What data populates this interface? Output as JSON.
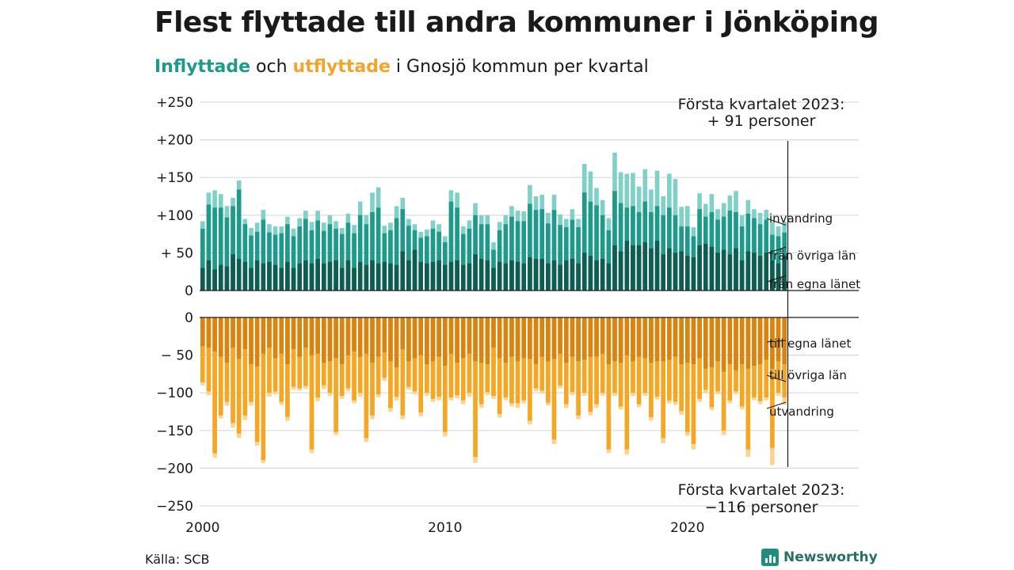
{
  "header": {
    "title": "Flest flyttade till andra kommuner i Jönköping",
    "subtitle_in": "Inflyttade",
    "subtitle_mid1": " och ",
    "subtitle_out": "utflyttade",
    "subtitle_rest": " i Gnosjö kommun per kvartal"
  },
  "footer": {
    "source": "Källa: SCB",
    "brand": "Newsworthy"
  },
  "colors": {
    "in_egna": "#0f5c52",
    "in_ovriga": "#1d9a8a",
    "in_invandring": "#7fd1c7",
    "out_egna": "#d98410",
    "out_ovriga": "#f5a623",
    "out_utvandring": "#fbd490",
    "grid": "#d9d9d9",
    "axis": "#1a1a1a"
  },
  "chart_data": {
    "type": "bar",
    "stacked": true,
    "x_start": "2000 Q1",
    "frequency": "quarterly",
    "ylim": [
      -250,
      250
    ],
    "y_ticks": [
      -250,
      -200,
      -150,
      -100,
      -50,
      0,
      50,
      100,
      150,
      200,
      250
    ],
    "y_tick_labels": [
      "−250",
      "−200",
      "−150",
      "−100",
      "− 50",
      "0",
      "+ 50",
      "+100",
      "+150",
      "+200",
      "+250"
    ],
    "x_ticks": [
      2000,
      2010,
      2020
    ],
    "x_tick_labels": [
      "2000",
      "2010",
      "2020"
    ],
    "annotations": {
      "top_line1": "Första kvartalet 2023:",
      "top_line2": "+ 91 personer",
      "bottom_line1": "Första kvartalet 2023:",
      "bottom_line2": "−116 personer"
    },
    "series_labels": {
      "invandring": "invandring",
      "fran_ovriga": "från övriga län",
      "fran_egna": "från egna länet",
      "till_egna": "till egna länet",
      "till_ovriga": "till övriga län",
      "utvandring": "utvandring"
    },
    "in_total": [
      92,
      130,
      133,
      128,
      112,
      123,
      146,
      95,
      83,
      90,
      107,
      88,
      85,
      85,
      98,
      82,
      96,
      106,
      91,
      106,
      90,
      100,
      92,
      83,
      102,
      87,
      118,
      100,
      130,
      137,
      86,
      90,
      112,
      123,
      95,
      88,
      78,
      81,
      93,
      88,
      72,
      133,
      130,
      85,
      93,
      116,
      100,
      100,
      64,
      91,
      100,
      112,
      106,
      105,
      140,
      125,
      127,
      103,
      127,
      101,
      95,
      108,
      95,
      168,
      158,
      136,
      120,
      96,
      183,
      157,
      155,
      156,
      138,
      161,
      134,
      159,
      125,
      155,
      148,
      111,
      112,
      84,
      129,
      115,
      128,
      108,
      116,
      126,
      132,
      100,
      120,
      108,
      103,
      107,
      91,
      85,
      91
    ],
    "in_egna": [
      30,
      40,
      28,
      34,
      32,
      48,
      42,
      38,
      30,
      40,
      36,
      38,
      34,
      30,
      38,
      30,
      36,
      40,
      36,
      42,
      36,
      38,
      40,
      30,
      40,
      30,
      38,
      34,
      40,
      36,
      38,
      36,
      34,
      52,
      40,
      54,
      38,
      36,
      38,
      40,
      34,
      38,
      40,
      34,
      36,
      48,
      42,
      40,
      30,
      38,
      36,
      40,
      38,
      36,
      44,
      42,
      42,
      36,
      40,
      34,
      40,
      42,
      36,
      50,
      46,
      40,
      42,
      36,
      60,
      52,
      66,
      60,
      60,
      64,
      56,
      66,
      48,
      56,
      50,
      52,
      46,
      44,
      60,
      62,
      58,
      50,
      54,
      48,
      56,
      40,
      52,
      50,
      46,
      50,
      40,
      36,
      46
    ],
    "in_ovriga": [
      82,
      114,
      110,
      110,
      97,
      112,
      134,
      88,
      73,
      78,
      94,
      77,
      74,
      76,
      88,
      72,
      85,
      95,
      80,
      93,
      79,
      88,
      82,
      75,
      90,
      76,
      100,
      88,
      104,
      110,
      76,
      80,
      96,
      108,
      86,
      80,
      70,
      72,
      82,
      78,
      64,
      118,
      110,
      75,
      82,
      100,
      88,
      88,
      54,
      80,
      88,
      98,
      92,
      92,
      115,
      107,
      108,
      89,
      107,
      87,
      84,
      94,
      84,
      130,
      118,
      113,
      100,
      80,
      132,
      116,
      110,
      112,
      104,
      118,
      104,
      112,
      100,
      110,
      100,
      85,
      85,
      72,
      108,
      98,
      104,
      94,
      98,
      106,
      104,
      85,
      102,
      96,
      88,
      94,
      74,
      72,
      77
    ],
    "out_egna": [
      -38,
      -40,
      -45,
      -52,
      -60,
      -40,
      -55,
      -42,
      -62,
      -65,
      -48,
      -40,
      -54,
      -48,
      -62,
      -42,
      -52,
      -40,
      -50,
      -48,
      -60,
      -58,
      -54,
      -62,
      -50,
      -45,
      -52,
      -48,
      -60,
      -52,
      -46,
      -58,
      -66,
      -42,
      -58,
      -54,
      -50,
      -62,
      -58,
      -52,
      -64,
      -48,
      -60,
      -54,
      -48,
      -58,
      -60,
      -62,
      -40,
      -54,
      -60,
      -52,
      -58,
      -54,
      -55,
      -62,
      -52,
      -58,
      -55,
      -48,
      -60,
      -52,
      -58,
      -56,
      -52,
      -52,
      -48,
      -62,
      -58,
      -60,
      -50,
      -58,
      -52,
      -54,
      -60,
      -58,
      -58,
      -56,
      -52,
      -62,
      -60,
      -62,
      -54,
      -68,
      -66,
      -58,
      -72,
      -62,
      -70,
      -62,
      -68,
      -64,
      -62,
      -56,
      -68,
      -58,
      -62
    ],
    "out_ovriga": [
      -86,
      -98,
      -180,
      -130,
      -112,
      -140,
      -154,
      -130,
      -112,
      -165,
      -189,
      -100,
      -98,
      -112,
      -132,
      -92,
      -94,
      -91,
      -175,
      -106,
      -90,
      -100,
      -152,
      -104,
      -94,
      -110,
      -100,
      -160,
      -130,
      -102,
      -80,
      -120,
      -105,
      -130,
      -92,
      -98,
      -126,
      -100,
      -108,
      -105,
      -152,
      -106,
      -103,
      -110,
      -100,
      -185,
      -115,
      -99,
      -104,
      -128,
      -106,
      -114,
      -114,
      -110,
      -137,
      -94,
      -97,
      -113,
      -162,
      -90,
      -115,
      -99,
      -130,
      -100,
      -125,
      -115,
      -100,
      -175,
      -100,
      -118,
      -175,
      -100,
      -115,
      -100,
      -132,
      -105,
      -160,
      -110,
      -112,
      -124,
      -152,
      -168,
      -108,
      -96,
      -119,
      -98,
      -150,
      -110,
      -98,
      -118,
      -175,
      -106,
      -111,
      -106,
      -173,
      -100,
      -106
    ],
    "out_utvandring": [
      -90,
      -103,
      -186,
      -134,
      -117,
      -146,
      -160,
      -136,
      -117,
      -170,
      -193,
      -105,
      -102,
      -116,
      -137,
      -96,
      -97,
      -95,
      -180,
      -111,
      -95,
      -104,
      -156,
      -108,
      -98,
      -114,
      -105,
      -165,
      -135,
      -106,
      -84,
      -125,
      -110,
      -135,
      -96,
      -102,
      -131,
      -104,
      -112,
      -110,
      -158,
      -110,
      -107,
      -115,
      -105,
      -193,
      -120,
      -103,
      -108,
      -133,
      -110,
      -118,
      -120,
      -114,
      -142,
      -98,
      -101,
      -117,
      -168,
      -94,
      -120,
      -103,
      -135,
      -104,
      -130,
      -120,
      -104,
      -180,
      -104,
      -122,
      -182,
      -104,
      -119,
      -104,
      -137,
      -109,
      -167,
      -114,
      -116,
      -129,
      -157,
      -175,
      -112,
      -100,
      -123,
      -102,
      -156,
      -114,
      -102,
      -122,
      -185,
      -110,
      -115,
      -110,
      -196,
      -104,
      -116
    ]
  }
}
